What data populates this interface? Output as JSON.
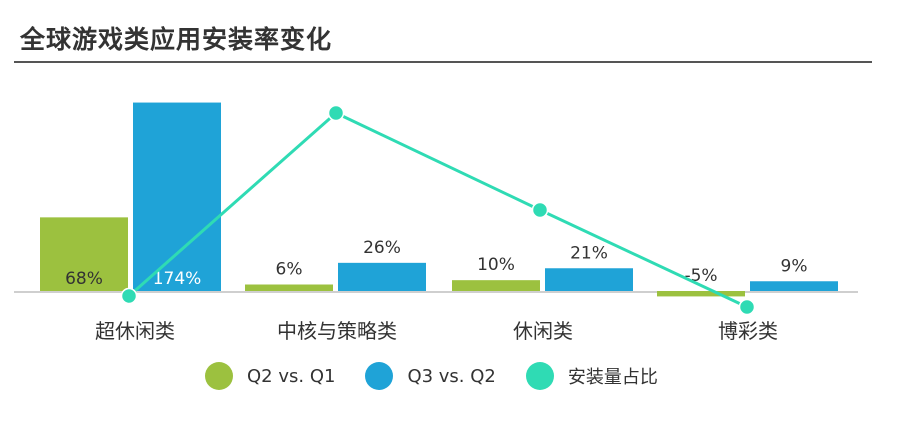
{
  "title": "全球游戏类应用安装率变化",
  "colors": {
    "q2": "#9cc13f",
    "q3": "#1fa3d7",
    "line": "#2fdbb4",
    "baseline": "#cfcfcf",
    "text": "#333333"
  },
  "legend": [
    {
      "label": "Q2 vs. Q1",
      "color": "#9cc13f"
    },
    {
      "label": "Q3 vs. Q2",
      "color": "#1fa3d7"
    },
    {
      "label": "安装量占比",
      "color": "#2fdbb4"
    }
  ],
  "chart_data": {
    "type": "bar",
    "title": "全球游戏类应用安装率变化",
    "categories": [
      "超休闲类",
      "中核与策略类",
      "休闲类",
      "博彩类"
    ],
    "series": [
      {
        "name": "Q2 vs. Q1",
        "type": "bar",
        "values": [
          68,
          6,
          10,
          -5
        ],
        "labels": [
          "68%",
          "6%",
          "10%",
          "-5%"
        ]
      },
      {
        "name": "Q3 vs. Q2",
        "type": "bar",
        "values": [
          174,
          26,
          21,
          9
        ],
        "labels": [
          "174%",
          "26%",
          "21%",
          "9%"
        ]
      },
      {
        "name": "安装量占比",
        "type": "line",
        "relative_levels": [
          0,
          1.0,
          0.47,
          -0.06
        ]
      }
    ],
    "ylim": [
      -10,
      180
    ],
    "grid": false,
    "legend_position": "bottom"
  }
}
